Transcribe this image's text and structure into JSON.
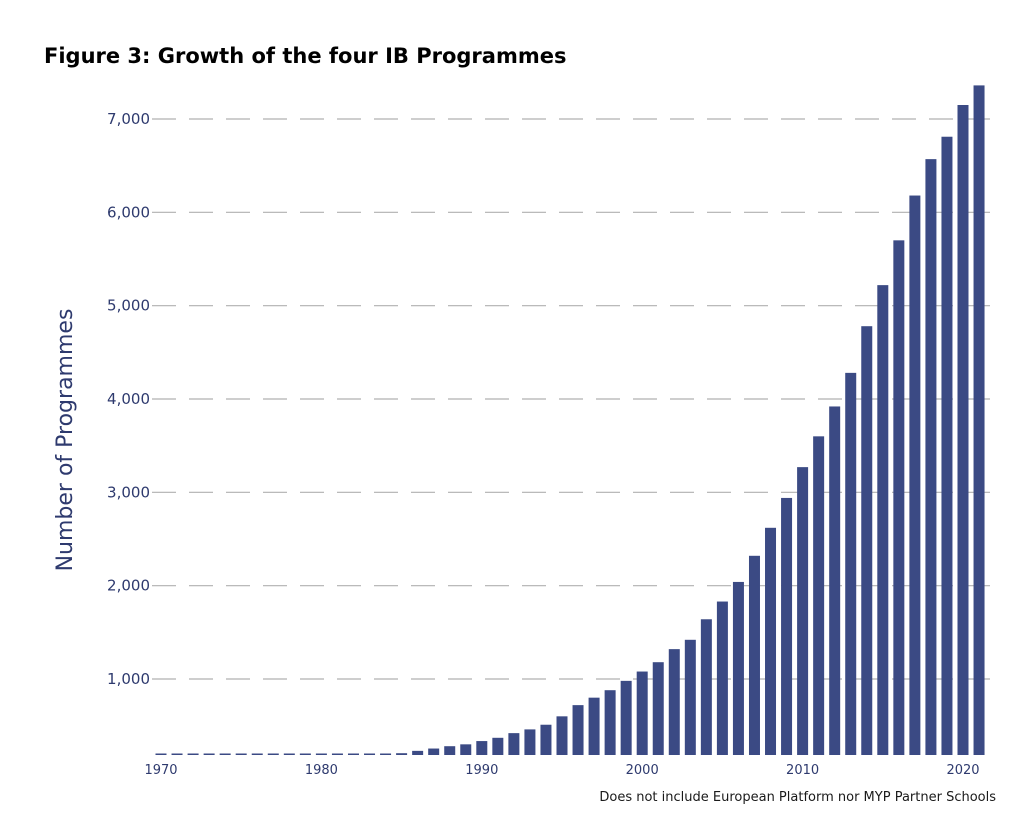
{
  "title": "Figure 3: Growth of the four IB Programmes",
  "footnote": "Does not include European Platform nor MYP Partner Schools",
  "chart_data": {
    "type": "bar",
    "title": "Figure 3: Growth of the four IB Programmes",
    "xlabel": "",
    "ylabel": "Number of Programmes",
    "bar_color": "#3b4a84",
    "gridline_color": "#b0b0b0",
    "text_color": "#2e3a6e",
    "grid": "horizontal dashed",
    "ylim": [
      0,
      7400
    ],
    "yticks": [
      1000,
      2000,
      3000,
      4000,
      5000,
      6000,
      7000
    ],
    "ytick_labels": [
      "1,000",
      "2,000",
      "3,000",
      "4,000",
      "5,000",
      "6,000",
      "7,000"
    ],
    "xticks": [
      1970,
      1980,
      1990,
      2000,
      2010,
      2020
    ],
    "xtick_labels": [
      "1970",
      "1980",
      "1990",
      "2000",
      "2010",
      "2020"
    ],
    "categories": [
      1970,
      1971,
      1972,
      1973,
      1974,
      1975,
      1976,
      1977,
      1978,
      1979,
      1980,
      1981,
      1982,
      1983,
      1984,
      1985,
      1986,
      1987,
      1988,
      1989,
      1990,
      1991,
      1992,
      1993,
      1994,
      1995,
      1996,
      1997,
      1998,
      1999,
      2000,
      2001,
      2002,
      2003,
      2004,
      2005,
      2006,
      2007,
      2008,
      2009,
      2010,
      2011,
      2012,
      2013,
      2014,
      2015,
      2016,
      2017,
      2018,
      2019,
      2020,
      2021
    ],
    "values": [
      10,
      12,
      15,
      18,
      25,
      35,
      45,
      60,
      70,
      85,
      100,
      120,
      140,
      165,
      185,
      205,
      230,
      255,
      280,
      300,
      335,
      370,
      420,
      460,
      510,
      600,
      720,
      800,
      880,
      980,
      1080,
      1180,
      1320,
      1420,
      1640,
      1830,
      2040,
      2320,
      2620,
      2940,
      3270,
      3600,
      3920,
      4280,
      4780,
      5220,
      5700,
      6180,
      6570,
      6810,
      7150,
      7360
    ]
  }
}
